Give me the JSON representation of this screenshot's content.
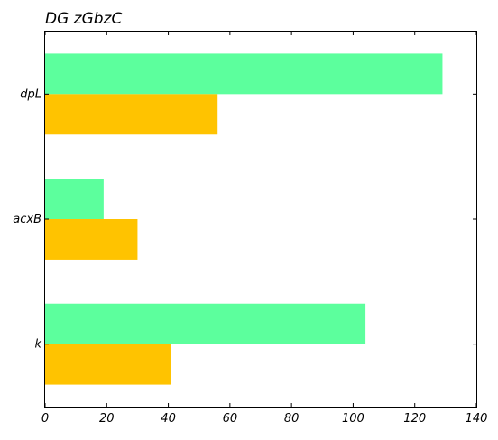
{
  "chart_data": {
    "type": "bar",
    "orientation": "horizontal",
    "title": "DG zGbzC",
    "xlabel": "",
    "ylabel": "",
    "categories": [
      "dpL",
      "acxB",
      "k"
    ],
    "series": [
      {
        "values": [
          129,
          19,
          104
        ],
        "color": "#5cff9d"
      },
      {
        "values": [
          56,
          30,
          41
        ],
        "color": "#ffc300"
      }
    ],
    "xlim": [
      0,
      140
    ],
    "xticks": [
      0,
      20,
      40,
      60,
      80,
      100,
      120,
      140
    ],
    "grid": false,
    "legend": "none"
  }
}
